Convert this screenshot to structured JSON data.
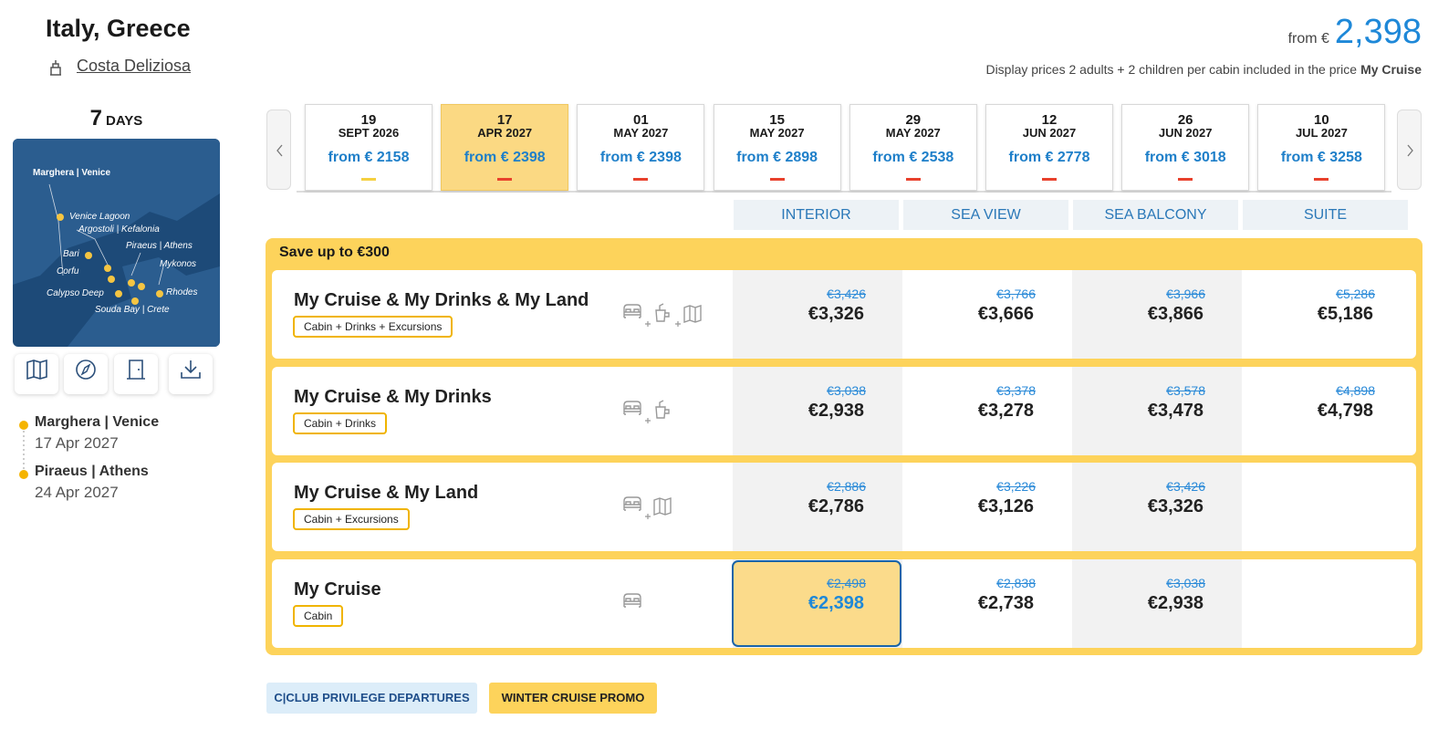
{
  "header": {
    "title": "Italy, Greece",
    "ship": "Costa Deliziosa",
    "price_prefix": "from €",
    "price": "2,398",
    "note": "Display prices 2 adults + 2 children per cabin included in the price",
    "note_bold": "My Cruise"
  },
  "itinerary": {
    "duration_number": "7",
    "duration_unit": "DAYS",
    "map_labels": [
      "Marghera | Venice",
      "Venice Lagoon",
      "Argostoli | Kefalonia",
      "Piraeus | Athens",
      "Bari",
      "Mykonos",
      "Corfu",
      "Calypso Deep",
      "Rhodes",
      "Souda Bay | Crete"
    ],
    "stops": [
      {
        "port": "Marghera | Venice",
        "date": "17 Apr 2027"
      },
      {
        "port": "Piraeus | Athens",
        "date": "24 Apr 2027"
      }
    ]
  },
  "dates": [
    {
      "day": "19",
      "month": "SEPT 2026",
      "price": "from € 2158",
      "selected": false
    },
    {
      "day": "17",
      "month": "APR 2027",
      "price": "from € 2398",
      "selected": true
    },
    {
      "day": "01",
      "month": "MAY 2027",
      "price": "from € 2398",
      "selected": false
    },
    {
      "day": "15",
      "month": "MAY 2027",
      "price": "from € 2898",
      "selected": false
    },
    {
      "day": "29",
      "month": "MAY 2027",
      "price": "from € 2538",
      "selected": false
    },
    {
      "day": "12",
      "month": "JUN 2027",
      "price": "from € 2778",
      "selected": false
    },
    {
      "day": "26",
      "month": "JUN 2027",
      "price": "from € 3018",
      "selected": false
    },
    {
      "day": "10",
      "month": "JUL 2027",
      "price": "from € 3258",
      "selected": false
    }
  ],
  "cabins": [
    "INTERIOR",
    "SEA VIEW",
    "SEA BALCONY",
    "SUITE"
  ],
  "offer": "Save up to €300",
  "packages": [
    {
      "name": "My Cruise & My Drinks & My Land",
      "tag": "Cabin + Drinks + Excursions",
      "prices": [
        {
          "old": "€3,426",
          "new": "€3,326"
        },
        {
          "old": "€3,766",
          "new": "€3,666"
        },
        {
          "old": "€3,966",
          "new": "€3,866"
        },
        {
          "old": "€5,286",
          "new": "€5,186"
        }
      ]
    },
    {
      "name": "My Cruise & My Drinks",
      "tag": "Cabin + Drinks",
      "prices": [
        {
          "old": "€3,038",
          "new": "€2,938"
        },
        {
          "old": "€3,378",
          "new": "€3,278"
        },
        {
          "old": "€3,578",
          "new": "€3,478"
        },
        {
          "old": "€4,898",
          "new": "€4,798"
        }
      ]
    },
    {
      "name": "My Cruise & My Land",
      "tag": "Cabin + Excursions",
      "prices": [
        {
          "old": "€2,886",
          "new": "€2,786"
        },
        {
          "old": "€3,226",
          "new": "€3,126"
        },
        {
          "old": "€3,426",
          "new": "€3,326"
        },
        null
      ]
    },
    {
      "name": "My Cruise",
      "tag": "Cabin",
      "prices": [
        {
          "old": "€2,498",
          "new": "€2,398",
          "selected": true
        },
        {
          "old": "€2,838",
          "new": "€2,738"
        },
        {
          "old": "€3,038",
          "new": "€2,938"
        },
        null
      ]
    }
  ],
  "badges": [
    "C|CLUB PRIVILEGE DEPARTURES",
    "WINTER CRUISE PROMO"
  ]
}
